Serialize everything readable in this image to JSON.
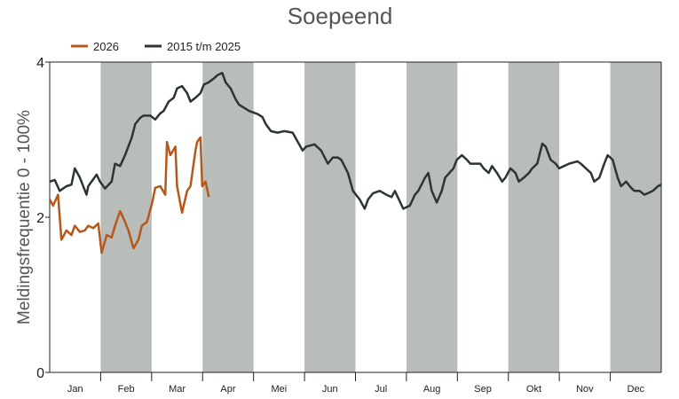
{
  "chart_data": {
    "type": "line",
    "title": "Soepeend",
    "xlabel": "",
    "ylabel": "Meldingsfrequentie 0 - 100%",
    "ylim": [
      0,
      4
    ],
    "yticks": [
      "0",
      "2",
      "4"
    ],
    "xlim": [
      0,
      365
    ],
    "months": [
      "Jan",
      "Feb",
      "Mar",
      "Apr",
      "Mei",
      "Jun",
      "Jul",
      "Aug",
      "Sep",
      "Okt",
      "Nov",
      "Dec"
    ],
    "shaded_months": [
      1,
      3,
      5,
      7,
      9,
      11
    ],
    "shade_color": "#b9bdb9",
    "legend_position": "top-left",
    "series": [
      {
        "name": "2026",
        "color": "#b5581b",
        "x": [
          0,
          2,
          5,
          7,
          10,
          13,
          15,
          18,
          21,
          23,
          26,
          29,
          31,
          34,
          37,
          39,
          42,
          45,
          47,
          50,
          53,
          55,
          58,
          61,
          63,
          66,
          69,
          70,
          72,
          75,
          76,
          79,
          82,
          84,
          87,
          88,
          90,
          91,
          93,
          95
        ],
        "y": [
          2.23,
          2.15,
          2.29,
          1.71,
          1.83,
          1.77,
          1.89,
          1.81,
          1.83,
          1.89,
          1.86,
          1.92,
          1.54,
          1.77,
          1.74,
          1.89,
          2.08,
          1.94,
          1.83,
          1.6,
          1.71,
          1.89,
          1.94,
          2.17,
          2.38,
          2.4,
          2.29,
          2.97,
          2.8,
          2.91,
          2.4,
          2.06,
          2.34,
          2.4,
          2.86,
          2.97,
          3.03,
          2.4,
          2.46,
          2.26
        ]
      },
      {
        "name": "2015 t/m 2025",
        "color": "#2b3630",
        "x": [
          0,
          3,
          6,
          10,
          13,
          15,
          18,
          22,
          23,
          28,
          30,
          33,
          37,
          39,
          42,
          45,
          49,
          51,
          54,
          56,
          60,
          63,
          66,
          68,
          71,
          74,
          76,
          79,
          82,
          84,
          87,
          90,
          92,
          95,
          98,
          100,
          103,
          105,
          108,
          111,
          113,
          119,
          124,
          127,
          129,
          132,
          136,
          140,
          145,
          151,
          153,
          158,
          162,
          166,
          169,
          172,
          174,
          178,
          181,
          185,
          188,
          190,
          193,
          197,
          201,
          204,
          206,
          211,
          215,
          218,
          220,
          224,
          226,
          228,
          231,
          234,
          236,
          241,
          243,
          246,
          249,
          251,
          257,
          259,
          262,
          264,
          267,
          270,
          272,
          275,
          278,
          280,
          283,
          286,
          288,
          291,
          294,
          296,
          299,
          302,
          304,
          310,
          315,
          317,
          320,
          323,
          325,
          328,
          331,
          333,
          336,
          339,
          341,
          344,
          347,
          349,
          352,
          355,
          357,
          360,
          363,
          365
        ],
        "y": [
          2.46,
          2.48,
          2.34,
          2.4,
          2.42,
          2.63,
          2.51,
          2.29,
          2.4,
          2.55,
          2.46,
          2.37,
          2.46,
          2.69,
          2.66,
          2.8,
          3.03,
          3.2,
          3.28,
          3.31,
          3.31,
          3.26,
          3.34,
          3.37,
          3.49,
          3.54,
          3.66,
          3.69,
          3.6,
          3.49,
          3.54,
          3.6,
          3.71,
          3.74,
          3.79,
          3.83,
          3.86,
          3.74,
          3.66,
          3.52,
          3.45,
          3.37,
          3.33,
          3.29,
          3.2,
          3.11,
          3.09,
          3.11,
          3.09,
          2.86,
          2.91,
          2.94,
          2.86,
          2.69,
          2.77,
          2.77,
          2.74,
          2.57,
          2.34,
          2.23,
          2.11,
          2.23,
          2.31,
          2.34,
          2.29,
          2.26,
          2.34,
          2.11,
          2.15,
          2.29,
          2.34,
          2.51,
          2.57,
          2.34,
          2.19,
          2.34,
          2.51,
          2.63,
          2.74,
          2.8,
          2.74,
          2.69,
          2.69,
          2.63,
          2.57,
          2.66,
          2.57,
          2.46,
          2.51,
          2.63,
          2.57,
          2.46,
          2.51,
          2.57,
          2.63,
          2.69,
          2.95,
          2.91,
          2.74,
          2.69,
          2.63,
          2.69,
          2.72,
          2.69,
          2.63,
          2.57,
          2.46,
          2.51,
          2.69,
          2.8,
          2.74,
          2.51,
          2.4,
          2.46,
          2.38,
          2.34,
          2.34,
          2.29,
          2.31,
          2.34,
          2.4,
          2.42
        ]
      }
    ]
  }
}
